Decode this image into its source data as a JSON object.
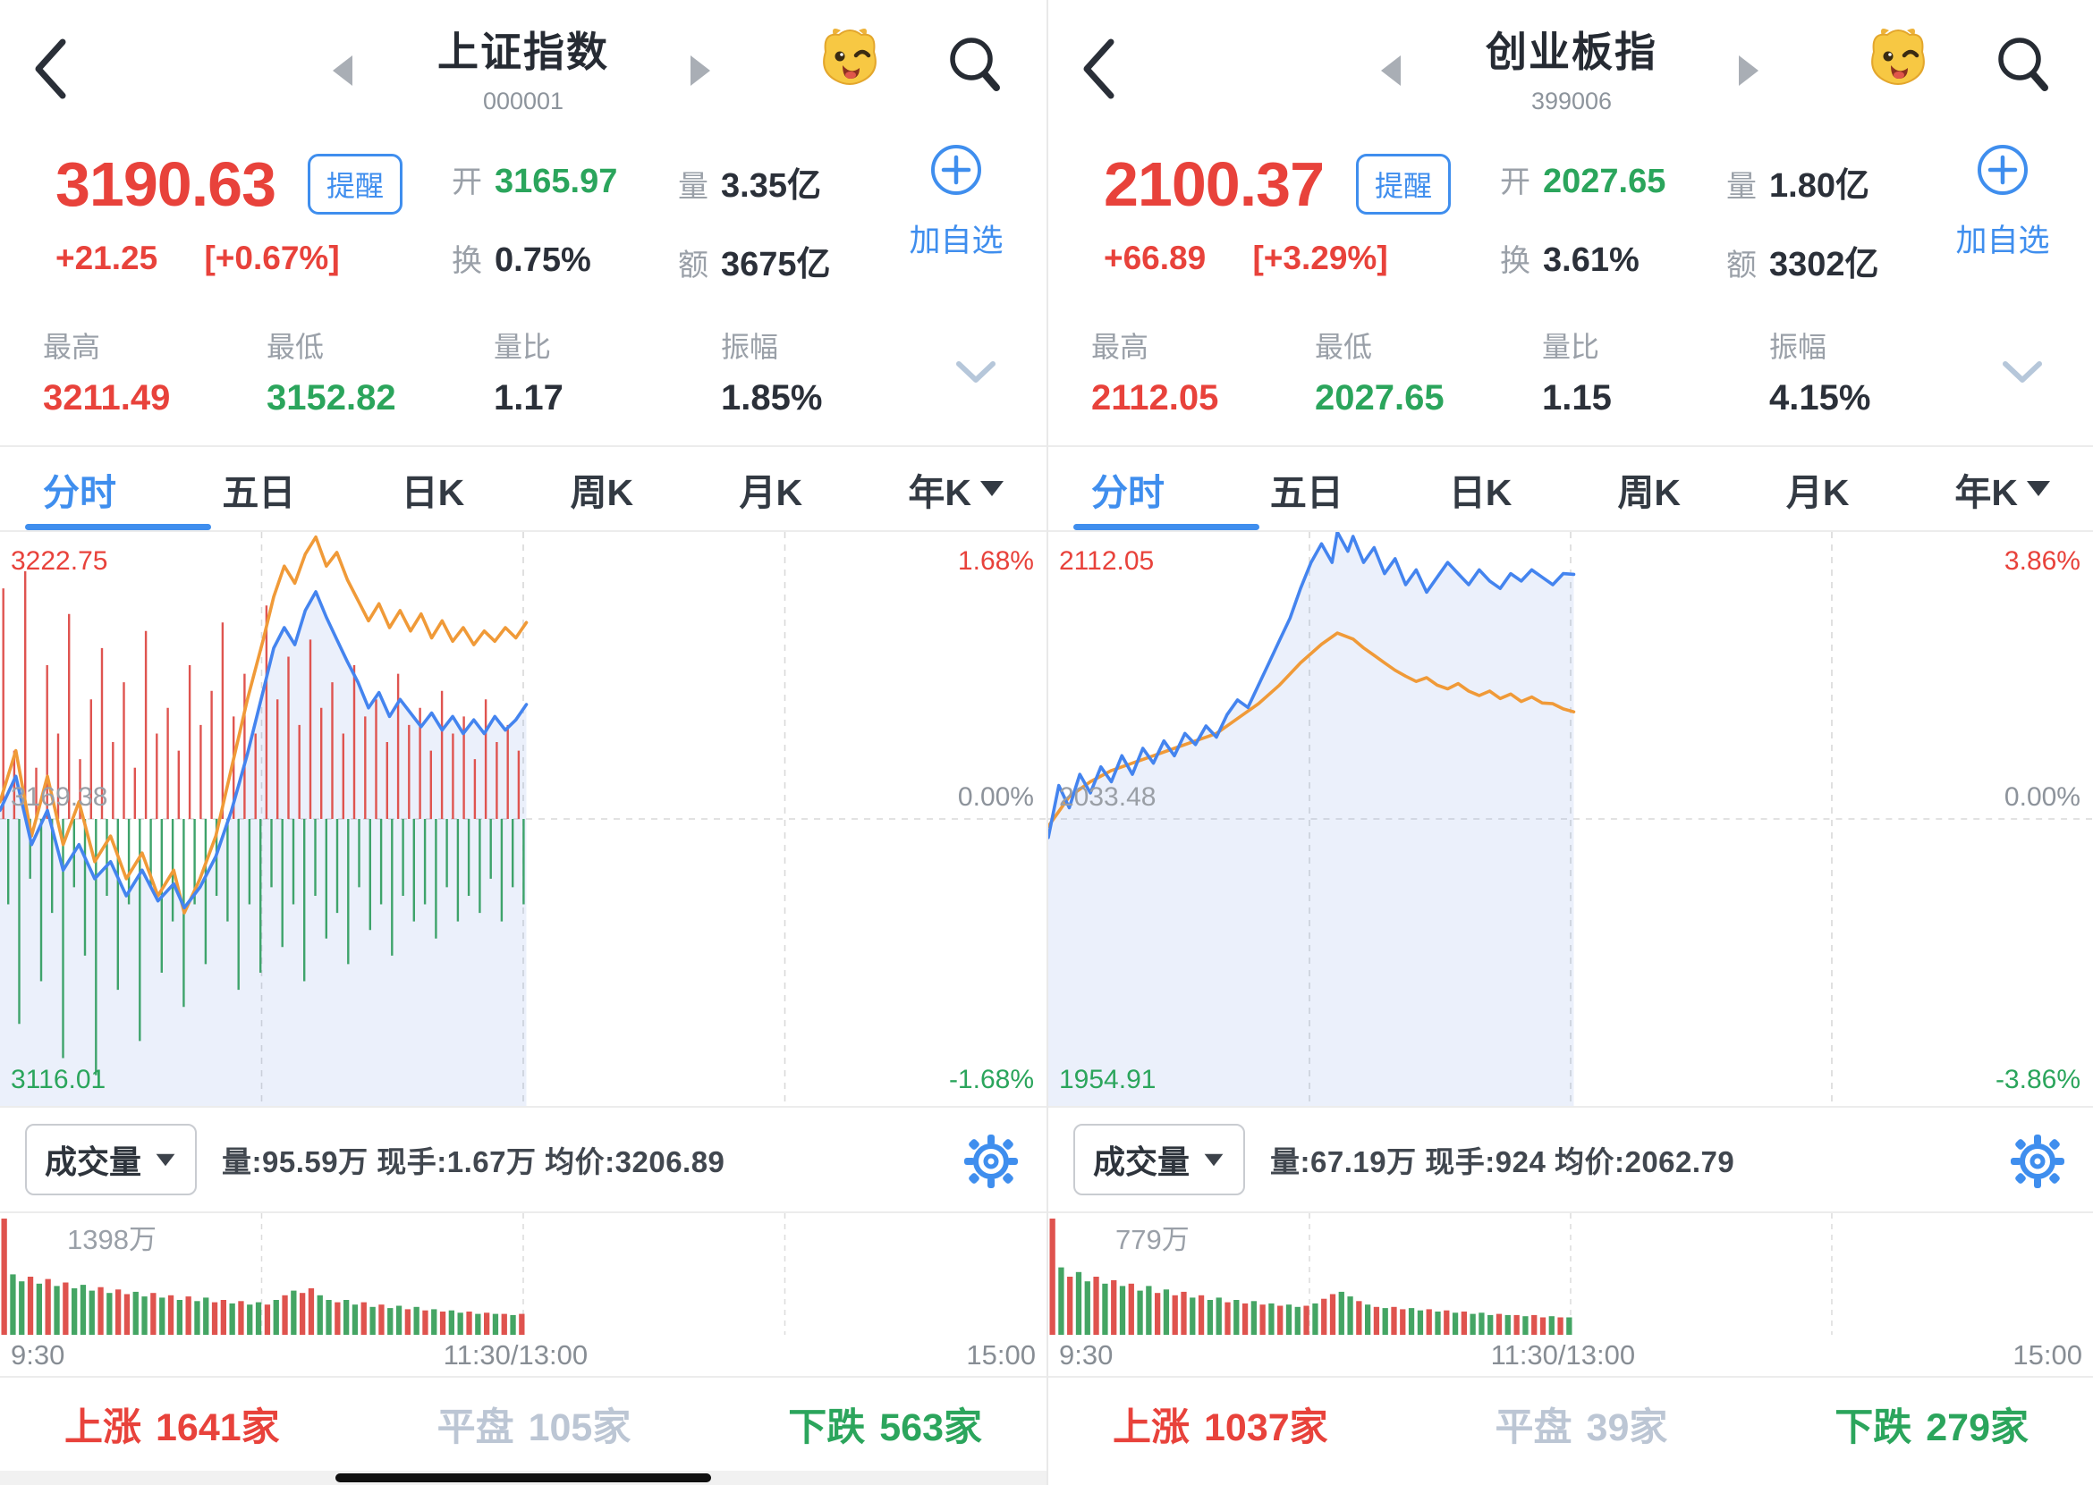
{
  "colors": {
    "up_red": "#e8423b",
    "down_green": "#2ba55c",
    "accent_blue": "#3f8eee",
    "flat_gray": "#bcc6d4",
    "price_line": "#4484ef",
    "avg_line": "#f09a38"
  },
  "panels": [
    {
      "header": {
        "title": "上证指数",
        "code": "000001"
      },
      "quote": {
        "price": "3190.63",
        "alert": "提醒",
        "change": "+21.25",
        "change_pct": "[+0.67%]",
        "open_label": "开",
        "open": "3165.97",
        "turnover_label": "换",
        "turnover": "0.75%",
        "volume_label": "量",
        "volume": "3.35亿",
        "amount_label": "额",
        "amount": "3675亿",
        "add_watch": "加自选"
      },
      "stats": {
        "high_label": "最高",
        "high": "3211.49",
        "low_label": "最低",
        "low": "3152.82",
        "volratio_label": "量比",
        "volratio": "1.17",
        "amplitude_label": "振幅",
        "amplitude": "1.85%"
      },
      "tabs": [
        "分时",
        "五日",
        "日K",
        "周K",
        "月K",
        "年K"
      ],
      "volume_pane": {
        "selector": "成交量",
        "info": "量:95.59万 现手:1.67万 均价:3206.89"
      },
      "breadth": {
        "up_label": "上涨",
        "up": "1641家",
        "flat_label": "平盘",
        "flat": "105家",
        "down_label": "下跌",
        "down": "563家"
      }
    },
    {
      "header": {
        "title": "创业板指",
        "code": "399006"
      },
      "quote": {
        "price": "2100.37",
        "alert": "提醒",
        "change": "+66.89",
        "change_pct": "[+3.29%]",
        "open_label": "开",
        "open": "2027.65",
        "turnover_label": "换",
        "turnover": "3.61%",
        "volume_label": "量",
        "volume": "1.80亿",
        "amount_label": "额",
        "amount": "3302亿",
        "add_watch": "加自选"
      },
      "stats": {
        "high_label": "最高",
        "high": "2112.05",
        "low_label": "最低",
        "low": "2027.65",
        "volratio_label": "量比",
        "volratio": "1.15",
        "amplitude_label": "振幅",
        "amplitude": "4.15%"
      },
      "tabs": [
        "分时",
        "五日",
        "日K",
        "周K",
        "月K",
        "年K"
      ],
      "volume_pane": {
        "selector": "成交量",
        "info": "量:67.19万 现手:924 均价:2062.79"
      },
      "breadth": {
        "up_label": "上涨",
        "up": "1037家",
        "flat_label": "平盘",
        "flat": "39家",
        "down_label": "下跌",
        "down": "279家"
      }
    }
  ],
  "chart_data": [
    {
      "type": "line",
      "title": "上证指数 分时图",
      "prev_close": 3169.38,
      "day_high": 3211.49,
      "day_low": 3152.82,
      "ylim_pct": [
        -1.68,
        1.68
      ],
      "session_fraction": 0.503,
      "grid": "dashed-quarters",
      "labels": {
        "top_price": "3222.75",
        "mid_price": "3169.38",
        "bottom_price": "3116.01",
        "top_pct": "1.68%",
        "mid_pct": "0.00%",
        "bottom_pct": "-1.68%",
        "vol_max": "1398万"
      },
      "x_labels": [
        "9:30",
        "11:30/13:00",
        "15:00"
      ],
      "series": [
        {
          "name": "price_pct",
          "color": "#4484ef",
          "values": [
            [
              0,
              0.05
            ],
            [
              3,
              0.25
            ],
            [
              6,
              -0.15
            ],
            [
              9,
              0.05
            ],
            [
              12,
              -0.3
            ],
            [
              15,
              -0.15
            ],
            [
              18,
              -0.35
            ],
            [
              21,
              -0.25
            ],
            [
              24,
              -0.45
            ],
            [
              27,
              -0.3
            ],
            [
              30,
              -0.48
            ],
            [
              33,
              -0.38
            ],
            [
              35,
              -0.52
            ],
            [
              38,
              -0.4
            ],
            [
              41,
              -0.22
            ],
            [
              44,
              0.05
            ],
            [
              47,
              0.38
            ],
            [
              50,
              0.75
            ],
            [
              52,
              1.0
            ],
            [
              54,
              1.12
            ],
            [
              56,
              1.02
            ],
            [
              58,
              1.22
            ],
            [
              60,
              1.33
            ],
            [
              62,
              1.18
            ],
            [
              64,
              1.05
            ],
            [
              66,
              0.92
            ],
            [
              68,
              0.8
            ],
            [
              70,
              0.65
            ],
            [
              72,
              0.74
            ],
            [
              74,
              0.6
            ],
            [
              76,
              0.7
            ],
            [
              78,
              0.62
            ],
            [
              80,
              0.54
            ],
            [
              82,
              0.62
            ],
            [
              84,
              0.52
            ],
            [
              86,
              0.6
            ],
            [
              88,
              0.5
            ],
            [
              90,
              0.58
            ],
            [
              92,
              0.5
            ],
            [
              94,
              0.6
            ],
            [
              96,
              0.52
            ],
            [
              98,
              0.58
            ],
            [
              100,
              0.67
            ]
          ]
        },
        {
          "name": "avg_pct",
          "color": "#f09a38",
          "values": [
            [
              0,
              0.1
            ],
            [
              3,
              0.4
            ],
            [
              6,
              -0.1
            ],
            [
              9,
              0.25
            ],
            [
              12,
              -0.15
            ],
            [
              15,
              0.1
            ],
            [
              18,
              -0.25
            ],
            [
              21,
              -0.1
            ],
            [
              24,
              -0.35
            ],
            [
              27,
              -0.2
            ],
            [
              30,
              -0.45
            ],
            [
              33,
              -0.3
            ],
            [
              35,
              -0.55
            ],
            [
              38,
              -0.35
            ],
            [
              41,
              -0.1
            ],
            [
              44,
              0.3
            ],
            [
              47,
              0.7
            ],
            [
              50,
              1.05
            ],
            [
              52,
              1.3
            ],
            [
              54,
              1.48
            ],
            [
              56,
              1.38
            ],
            [
              58,
              1.55
            ],
            [
              60,
              1.65
            ],
            [
              62,
              1.48
            ],
            [
              64,
              1.56
            ],
            [
              66,
              1.4
            ],
            [
              68,
              1.28
            ],
            [
              70,
              1.16
            ],
            [
              72,
              1.26
            ],
            [
              74,
              1.12
            ],
            [
              76,
              1.22
            ],
            [
              78,
              1.1
            ],
            [
              80,
              1.2
            ],
            [
              82,
              1.06
            ],
            [
              84,
              1.16
            ],
            [
              86,
              1.04
            ],
            [
              88,
              1.12
            ],
            [
              90,
              1.02
            ],
            [
              92,
              1.1
            ],
            [
              94,
              1.04
            ],
            [
              96,
              1.12
            ],
            [
              98,
              1.06
            ],
            [
              100,
              1.15
            ]
          ]
        }
      ],
      "adv_dec": {
        "up": [
          1.35,
          0.4,
          1.45,
          0.3,
          0.9,
          0.5,
          1.2,
          0.35,
          0.7,
          1.0,
          0.45,
          0.8,
          0.3,
          1.1,
          0.5,
          0.65,
          0.4,
          0.9,
          0.55,
          0.75,
          1.15,
          0.6,
          0.85,
          0.5,
          1.25,
          0.7,
          0.95,
          0.55,
          1.05,
          0.65,
          0.8,
          0.5,
          0.9,
          0.6,
          0.7,
          0.45,
          0.85,
          0.55,
          0.65,
          0.4,
          0.75,
          0.5,
          0.6,
          0.35,
          0.7,
          0.45,
          0.55,
          0.4
        ],
        "down": [
          0.5,
          1.2,
          0.35,
          0.95,
          0.55,
          1.4,
          0.4,
          0.8,
          1.5,
          0.45,
          1.0,
          0.5,
          1.3,
          0.4,
          0.9,
          0.6,
          1.1,
          0.5,
          0.85,
          0.45,
          0.6,
          1.0,
          0.5,
          0.9,
          0.4,
          0.75,
          0.5,
          0.95,
          0.45,
          0.7,
          0.55,
          0.85,
          0.4,
          0.65,
          0.5,
          0.8,
          0.45,
          0.6,
          0.5,
          0.7,
          0.4,
          0.6,
          0.45,
          0.55,
          0.35,
          0.6,
          0.4,
          0.5
        ]
      },
      "volume": {
        "heights": [
          1.0,
          0.52,
          0.46,
          0.5,
          0.44,
          0.48,
          0.42,
          0.45,
          0.4,
          0.43,
          0.38,
          0.41,
          0.36,
          0.39,
          0.35,
          0.37,
          0.33,
          0.36,
          0.32,
          0.34,
          0.3,
          0.33,
          0.29,
          0.32,
          0.28,
          0.3,
          0.27,
          0.29,
          0.26,
          0.28,
          0.26,
          0.3,
          0.34,
          0.38,
          0.36,
          0.4,
          0.34,
          0.3,
          0.28,
          0.3,
          0.26,
          0.28,
          0.24,
          0.26,
          0.23,
          0.25,
          0.22,
          0.24,
          0.21,
          0.22,
          0.2,
          0.21,
          0.19,
          0.2,
          0.18,
          0.19,
          0.18,
          0.18,
          0.17,
          0.18
        ],
        "colors": "rggrgrgrgggrgrrggrgrgrggrrgrggrgrgrrggrggrgrggrgrgrggrgrgrgr"
      }
    },
    {
      "type": "line",
      "title": "创业板指 分时图",
      "prev_close": 2033.48,
      "day_high": 2112.05,
      "day_low": 2027.65,
      "ylim_pct": [
        -3.86,
        3.86
      ],
      "session_fraction": 0.503,
      "grid": "dashed-quarters",
      "labels": {
        "top_price": "2112.05",
        "mid_price": "2033.48",
        "bottom_price": "1954.91",
        "top_pct": "3.86%",
        "mid_pct": "0.00%",
        "bottom_pct": "-3.86%",
        "vol_max": "779万"
      },
      "x_labels": [
        "9:30",
        "11:30/13:00",
        "15:00"
      ],
      "series": [
        {
          "name": "price_pct",
          "color": "#4484ef",
          "values": [
            [
              0,
              -0.25
            ],
            [
              2,
              0.45
            ],
            [
              4,
              0.15
            ],
            [
              6,
              0.6
            ],
            [
              8,
              0.35
            ],
            [
              10,
              0.7
            ],
            [
              12,
              0.5
            ],
            [
              14,
              0.85
            ],
            [
              16,
              0.6
            ],
            [
              18,
              0.95
            ],
            [
              20,
              0.75
            ],
            [
              22,
              1.05
            ],
            [
              24,
              0.85
            ],
            [
              26,
              1.15
            ],
            [
              28,
              1.0
            ],
            [
              30,
              1.25
            ],
            [
              32,
              1.1
            ],
            [
              34,
              1.4
            ],
            [
              36,
              1.6
            ],
            [
              38,
              1.5
            ],
            [
              40,
              1.8
            ],
            [
              42,
              2.1
            ],
            [
              44,
              2.4
            ],
            [
              46,
              2.7
            ],
            [
              48,
              3.1
            ],
            [
              50,
              3.45
            ],
            [
              52,
              3.7
            ],
            [
              54,
              3.45
            ],
            [
              55,
              3.86
            ],
            [
              57,
              3.6
            ],
            [
              58,
              3.8
            ],
            [
              60,
              3.45
            ],
            [
              62,
              3.65
            ],
            [
              64,
              3.3
            ],
            [
              66,
              3.5
            ],
            [
              68,
              3.15
            ],
            [
              70,
              3.35
            ],
            [
              72,
              3.05
            ],
            [
              74,
              3.25
            ],
            [
              76,
              3.45
            ],
            [
              78,
              3.3
            ],
            [
              80,
              3.15
            ],
            [
              82,
              3.35
            ],
            [
              84,
              3.2
            ],
            [
              86,
              3.1
            ],
            [
              88,
              3.3
            ],
            [
              90,
              3.2
            ],
            [
              92,
              3.35
            ],
            [
              94,
              3.25
            ],
            [
              96,
              3.15
            ],
            [
              98,
              3.3
            ],
            [
              100,
              3.29
            ]
          ]
        },
        {
          "name": "avg_pct",
          "color": "#f09a38",
          "values": [
            [
              0,
              -0.1
            ],
            [
              4,
              0.3
            ],
            [
              8,
              0.5
            ],
            [
              12,
              0.65
            ],
            [
              16,
              0.75
            ],
            [
              20,
              0.85
            ],
            [
              24,
              0.95
            ],
            [
              28,
              1.05
            ],
            [
              32,
              1.15
            ],
            [
              36,
              1.35
            ],
            [
              40,
              1.55
            ],
            [
              44,
              1.8
            ],
            [
              48,
              2.1
            ],
            [
              52,
              2.35
            ],
            [
              55,
              2.5
            ],
            [
              58,
              2.42
            ],
            [
              60,
              2.3
            ],
            [
              62,
              2.2
            ],
            [
              64,
              2.1
            ],
            [
              66,
              2.0
            ],
            [
              68,
              1.92
            ],
            [
              70,
              1.85
            ],
            [
              72,
              1.9
            ],
            [
              74,
              1.8
            ],
            [
              76,
              1.75
            ],
            [
              78,
              1.82
            ],
            [
              80,
              1.72
            ],
            [
              82,
              1.66
            ],
            [
              84,
              1.72
            ],
            [
              86,
              1.62
            ],
            [
              88,
              1.68
            ],
            [
              90,
              1.58
            ],
            [
              92,
              1.64
            ],
            [
              94,
              1.56
            ],
            [
              96,
              1.55
            ],
            [
              98,
              1.48
            ],
            [
              100,
              1.44
            ]
          ]
        }
      ],
      "adv_dec": null,
      "volume": {
        "heights": [
          1.0,
          0.58,
          0.5,
          0.54,
          0.46,
          0.5,
          0.44,
          0.47,
          0.42,
          0.44,
          0.38,
          0.42,
          0.36,
          0.39,
          0.34,
          0.37,
          0.32,
          0.34,
          0.3,
          0.32,
          0.28,
          0.3,
          0.27,
          0.29,
          0.26,
          0.27,
          0.25,
          0.26,
          0.24,
          0.25,
          0.27,
          0.31,
          0.35,
          0.37,
          0.33,
          0.29,
          0.26,
          0.24,
          0.23,
          0.24,
          0.22,
          0.23,
          0.21,
          0.22,
          0.2,
          0.21,
          0.19,
          0.2,
          0.18,
          0.19,
          0.17,
          0.18,
          0.17,
          0.17,
          0.16,
          0.17,
          0.15,
          0.16,
          0.15,
          0.15
        ],
        "colors": "rgrggrgrgrggrgrrgrggrgrgrgrggrgrrggrgrgrrggrgrgrgggrgrgrrgrg"
      }
    }
  ]
}
